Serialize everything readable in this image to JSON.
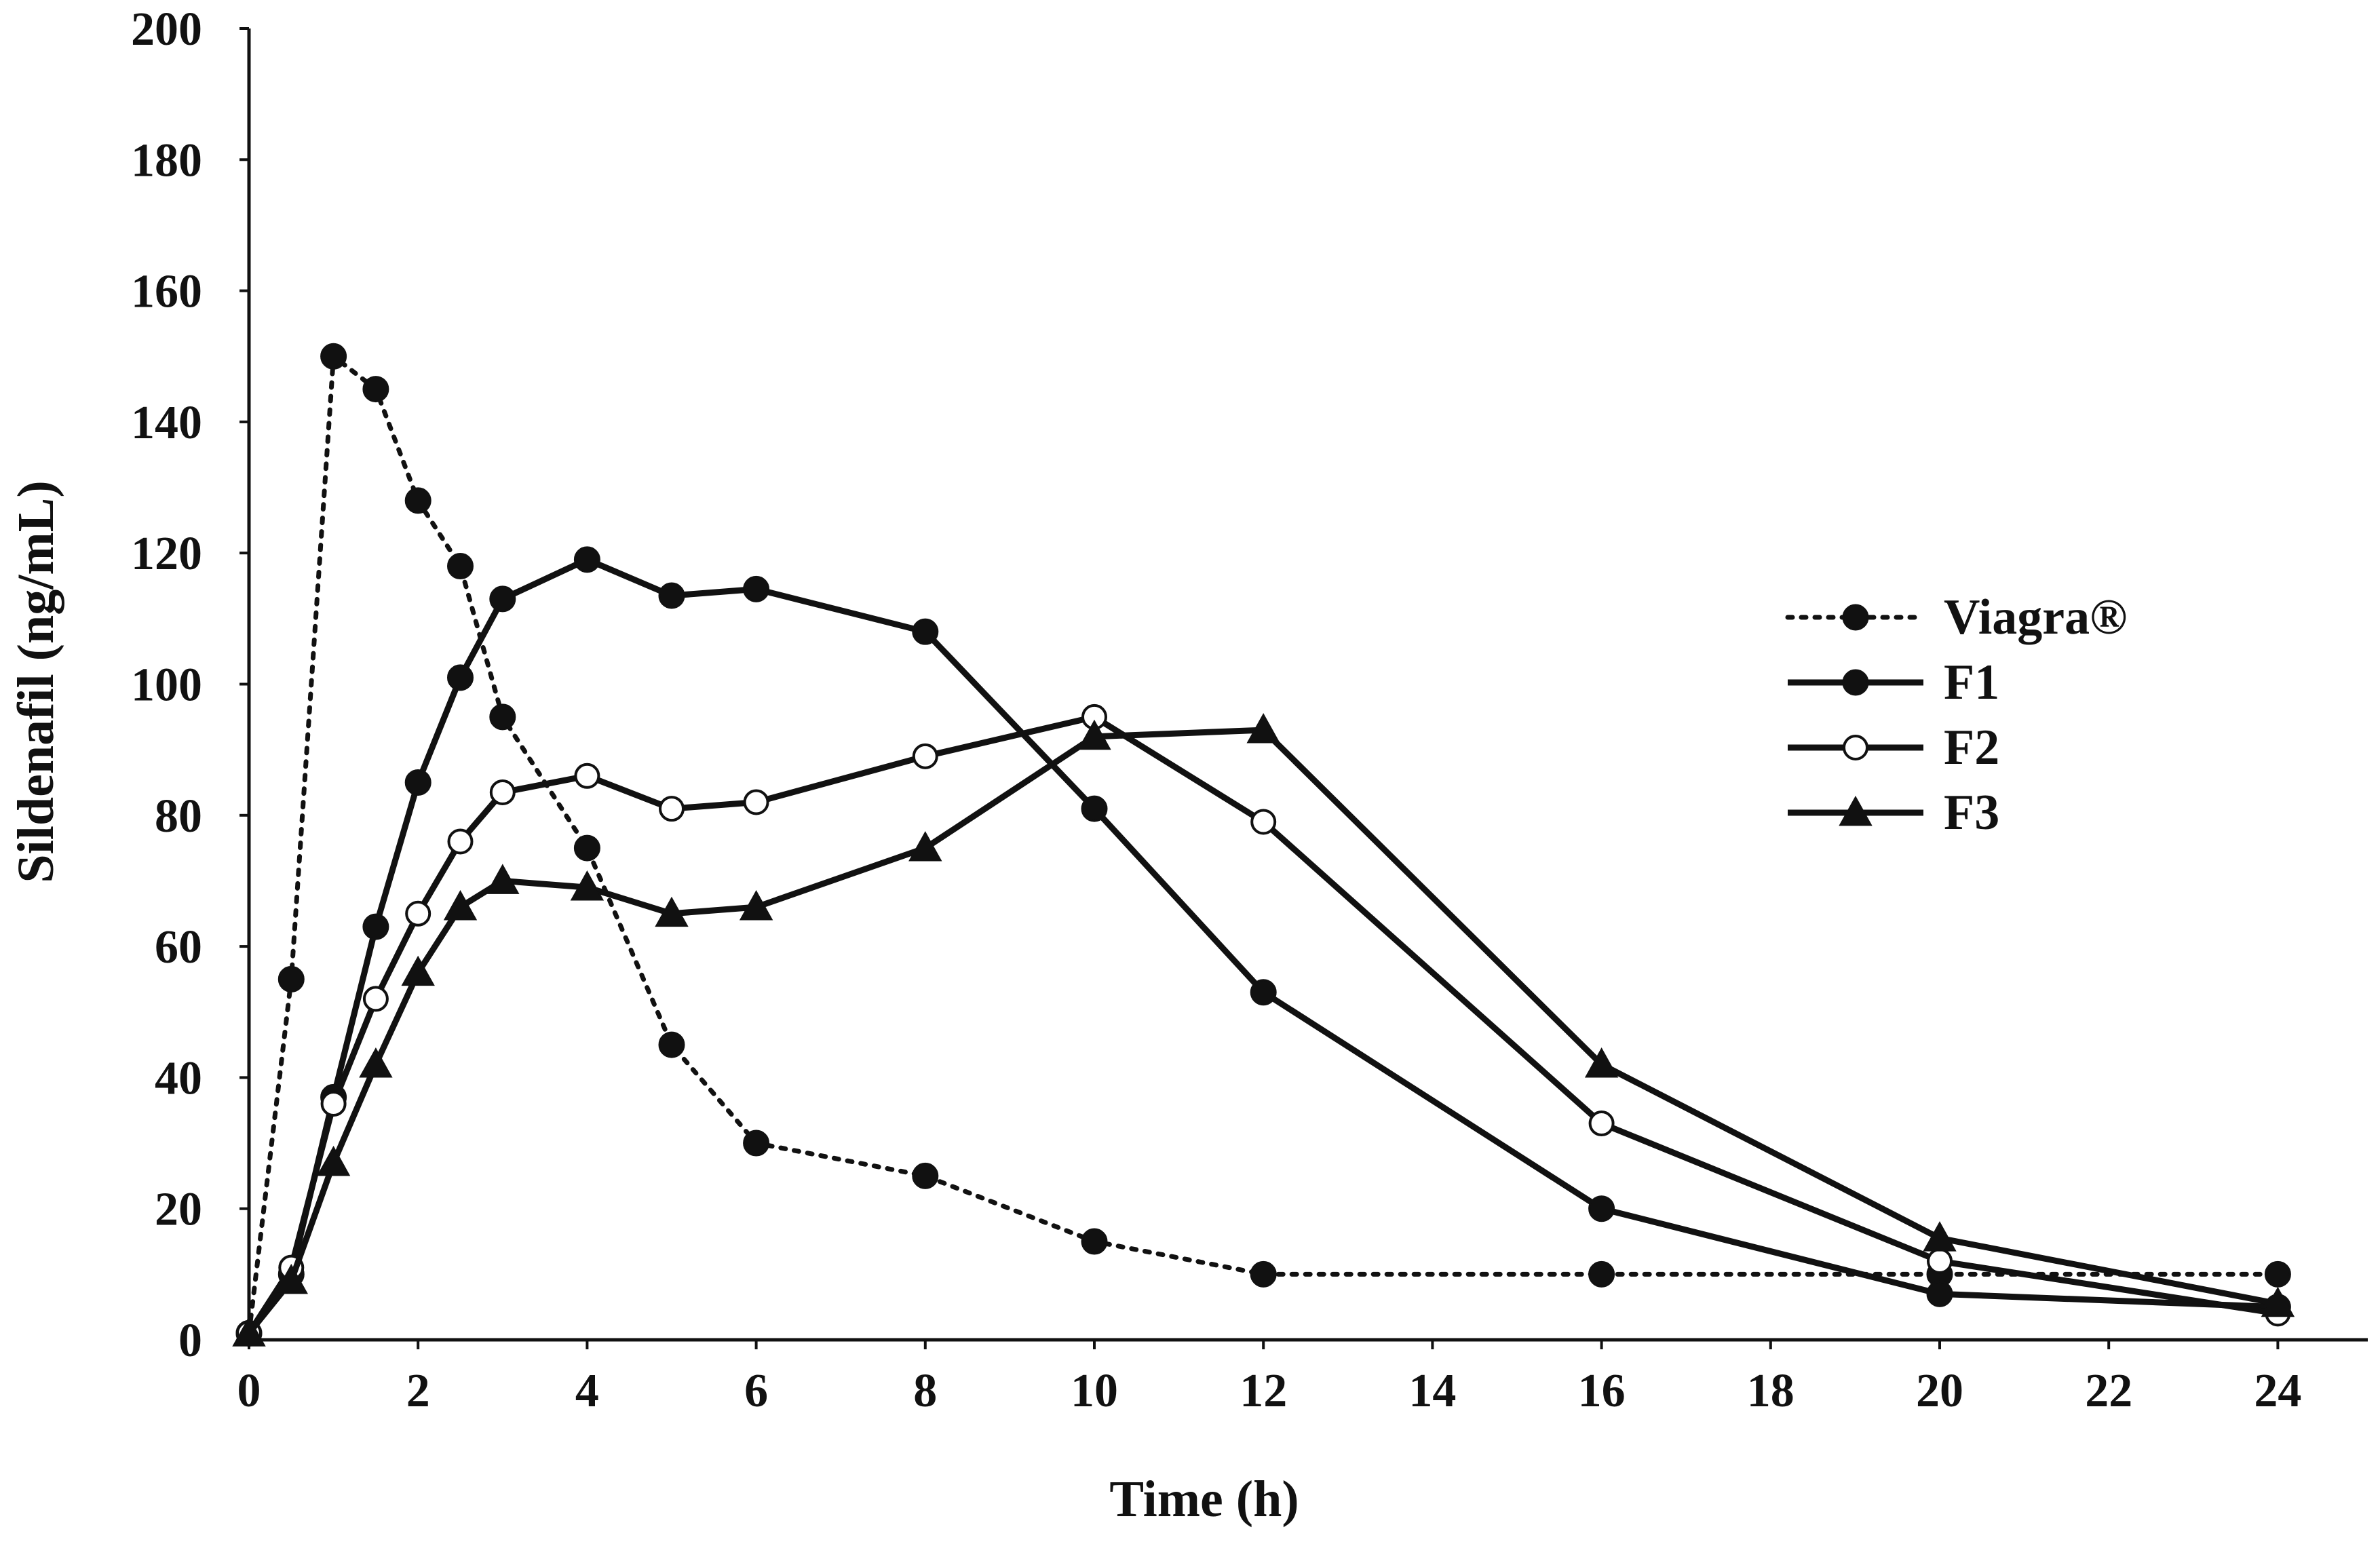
{
  "chart_data": {
    "type": "line",
    "title": "",
    "xlabel": "Time (h)",
    "ylabel": "Sildenafil (ng/mL)",
    "xlim": [
      0,
      25
    ],
    "ylim": [
      0,
      200
    ],
    "xticks": [
      0,
      2,
      4,
      6,
      8,
      10,
      12,
      14,
      16,
      18,
      20,
      22,
      24
    ],
    "yticks": [
      0,
      20,
      40,
      60,
      80,
      100,
      120,
      140,
      160,
      180,
      200
    ],
    "grid": false,
    "legend_position": "right",
    "series": [
      {
        "name": "Viagra®",
        "line_style": "dotted",
        "marker": "filled-circle",
        "color": "#111111",
        "x": [
          0,
          0.5,
          1,
          1.5,
          2,
          2.5,
          3,
          4,
          5,
          6,
          8,
          10,
          12,
          16,
          20,
          24
        ],
        "y": [
          1,
          55,
          150,
          145,
          128,
          118,
          95,
          75,
          45,
          30,
          25,
          15,
          10,
          10,
          10,
          10
        ]
      },
      {
        "name": "F1",
        "line_style": "solid",
        "marker": "filled-circle",
        "color": "#111111",
        "x": [
          0,
          0.5,
          1,
          1.5,
          2,
          2.5,
          3,
          4,
          5,
          6,
          8,
          10,
          12,
          16,
          20,
          24
        ],
        "y": [
          1,
          10,
          37,
          63,
          85,
          101,
          113,
          119,
          113.5,
          114.5,
          108,
          81,
          53,
          20,
          7,
          5
        ]
      },
      {
        "name": "F2",
        "line_style": "solid",
        "marker": "open-circle",
        "color": "#111111",
        "x": [
          0,
          0.5,
          1,
          1.5,
          2,
          2.5,
          3,
          4,
          5,
          6,
          8,
          10,
          12,
          16,
          20,
          24
        ],
        "y": [
          1,
          11,
          36,
          52,
          65,
          76,
          83.5,
          86,
          81,
          82,
          89,
          95,
          79,
          33,
          12,
          4
        ]
      },
      {
        "name": "F3",
        "line_style": "solid",
        "marker": "filled-triangle",
        "color": "#111111",
        "x": [
          0,
          0.5,
          1,
          1.5,
          2,
          2.5,
          3,
          4,
          5,
          6,
          8,
          10,
          12,
          16,
          20,
          24
        ],
        "y": [
          1,
          9,
          27,
          42,
          56,
          66,
          70,
          69,
          65,
          66,
          75,
          92,
          93,
          42,
          15.5,
          5.5
        ]
      }
    ]
  }
}
